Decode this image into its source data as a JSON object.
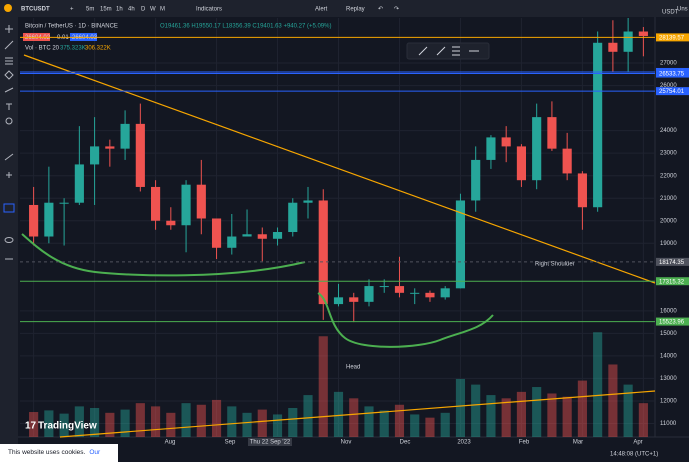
{
  "toolbar": {
    "symbol": "BTCUSDT",
    "intervals": [
      "5m",
      "15m",
      "1h",
      "4h",
      "D",
      "W",
      "M"
    ],
    "indicators": "Indicators",
    "alert": "Alert",
    "replay": "Replay",
    "corner": "Uns"
  },
  "legend": {
    "title": "Bitcoin / TetherUS · 1D · BINANCE",
    "ohlc": "O19461.36 H19550.17 L18356.39 C19401.63 +940.27 (+5.09%)",
    "sell": "26604.02",
    "spread": "0.01",
    "buy": "26604.03",
    "volume": "Vol · BTC 20",
    "volume_value": "375.323K",
    "volume_ma": "306.322K"
  },
  "chart_data": {
    "type": "candlestick",
    "currency": "USDT",
    "ohlc": [
      [
        20700,
        21500,
        18900,
        19300
      ],
      [
        19300,
        22400,
        19000,
        20800
      ],
      [
        20800,
        21000,
        18900,
        20800
      ],
      [
        20800,
        24200,
        20700,
        22500
      ],
      [
        22500,
        24600,
        20700,
        23300
      ],
      [
        23300,
        23600,
        22400,
        23200
      ],
      [
        23200,
        24900,
        22700,
        24300
      ],
      [
        24300,
        25200,
        21300,
        21500
      ],
      [
        21500,
        21800,
        19600,
        20000
      ],
      [
        20000,
        20600,
        19600,
        19800
      ],
      [
        19800,
        21800,
        18600,
        21600
      ],
      [
        21600,
        22700,
        19400,
        20100
      ],
      [
        20100,
        20100,
        18300,
        18800
      ],
      [
        18800,
        20300,
        18500,
        19300
      ],
      [
        19300,
        20500,
        19300,
        19400
      ],
      [
        19400,
        19700,
        18200,
        19200
      ],
      [
        19200,
        19700,
        18900,
        19500
      ],
      [
        19500,
        21000,
        19300,
        20800
      ],
      [
        20800,
        21500,
        20100,
        20900
      ],
      [
        20900,
        21400,
        15600,
        16300
      ],
      [
        16300,
        17200,
        16200,
        16600
      ],
      [
        16600,
        16800,
        15500,
        16400
      ],
      [
        16400,
        17400,
        16200,
        17100
      ],
      [
        17100,
        17400,
        16800,
        17100
      ],
      [
        17100,
        18400,
        16600,
        16800
      ],
      [
        16800,
        17000,
        16300,
        16800
      ],
      [
        16800,
        16900,
        16400,
        16600
      ],
      [
        16600,
        17100,
        16500,
        17000
      ],
      [
        17000,
        21200,
        17000,
        20900
      ],
      [
        20900,
        23300,
        20400,
        22700
      ],
      [
        22700,
        23800,
        22300,
        23700
      ],
      [
        23700,
        24200,
        22600,
        23300
      ],
      [
        23300,
        23400,
        21500,
        21800
      ],
      [
        21800,
        25200,
        21400,
        24600
      ],
      [
        24600,
        25300,
        23100,
        23200
      ],
      [
        23200,
        23900,
        21800,
        22100
      ],
      [
        22100,
        22200,
        19600,
        20600
      ],
      [
        20600,
        28400,
        20400,
        27900
      ],
      [
        27900,
        28900,
        26600,
        27500
      ],
      [
        27500,
        29000,
        26600,
        28400
      ],
      [
        28400,
        28600,
        27300,
        28200
      ]
    ],
    "volume": [
      310,
      330,
      290,
      380,
      360,
      300,
      340,
      420,
      380,
      300,
      420,
      400,
      460,
      380,
      300,
      340,
      280,
      360,
      520,
      1250,
      560,
      480,
      380,
      330,
      400,
      280,
      240,
      300,
      720,
      650,
      520,
      480,
      560,
      620,
      540,
      500,
      700,
      1300,
      900,
      650,
      420
    ],
    "volume_ylim": [
      0,
      1700
    ],
    "ylim": [
      10400,
      29000
    ],
    "yticks": [
      27000,
      26000,
      24000,
      23000,
      22000,
      21000,
      20000,
      19000,
      16000,
      15000,
      14000,
      13000,
      12000,
      11000
    ],
    "grid": true,
    "up_color": "#26a69a",
    "down_color": "#ef5350",
    "price_lines": [
      {
        "value": 28139.57,
        "color": "#f7a600"
      },
      {
        "value": 26604.03,
        "color": "#2962ff"
      },
      {
        "value": 26533.75,
        "color": "#2962ff"
      },
      {
        "value": 25754.01,
        "color": "#2962ff"
      },
      {
        "value": 18174.35,
        "color": "#50535e"
      },
      {
        "value": 17315.32,
        "color": "#4caf50"
      },
      {
        "value": 15523.96,
        "color": "#4caf50"
      }
    ],
    "annotations": [
      "Right Shoulder",
      "Head"
    ],
    "time_labels": [
      "Aug",
      "Sep",
      "Thu 22 Sep '22",
      "Nov",
      "Dec",
      "2023",
      "Feb",
      "Mar",
      "Apr"
    ],
    "clock": "14:48:08 (UTC+1)"
  },
  "footer": {
    "cookies": "This website uses cookies.",
    "policy": "Our policy.",
    "brand": "TradingView"
  }
}
